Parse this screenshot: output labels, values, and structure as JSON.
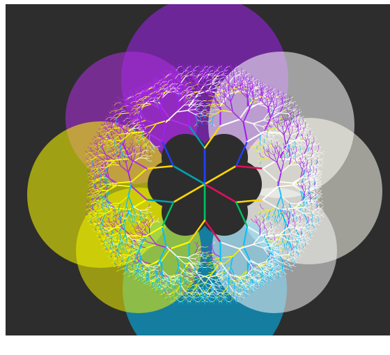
{
  "canvas": {
    "background_color": "#2d2d2d",
    "frame_color": "#ffffff"
  },
  "fractal": {
    "kind": "fractal-tree-rosette",
    "branch_count": 6,
    "recursion_levels": 9,
    "colors": {
      "top": "#a020f0",
      "upper_left": "#b030e0",
      "upper_right": "#ffffff",
      "left": "#ffff00",
      "right": "#fffff0",
      "bottom": "#00bfff",
      "lower_left": "#f0f000",
      "lower_right": "#f5f5f5",
      "inner_red": "#e0105a",
      "inner_green": "#00c060",
      "inner_teal": "#00a0b0",
      "inner_blue": "#2040ff",
      "inner_gold": "#ffd700"
    }
  }
}
